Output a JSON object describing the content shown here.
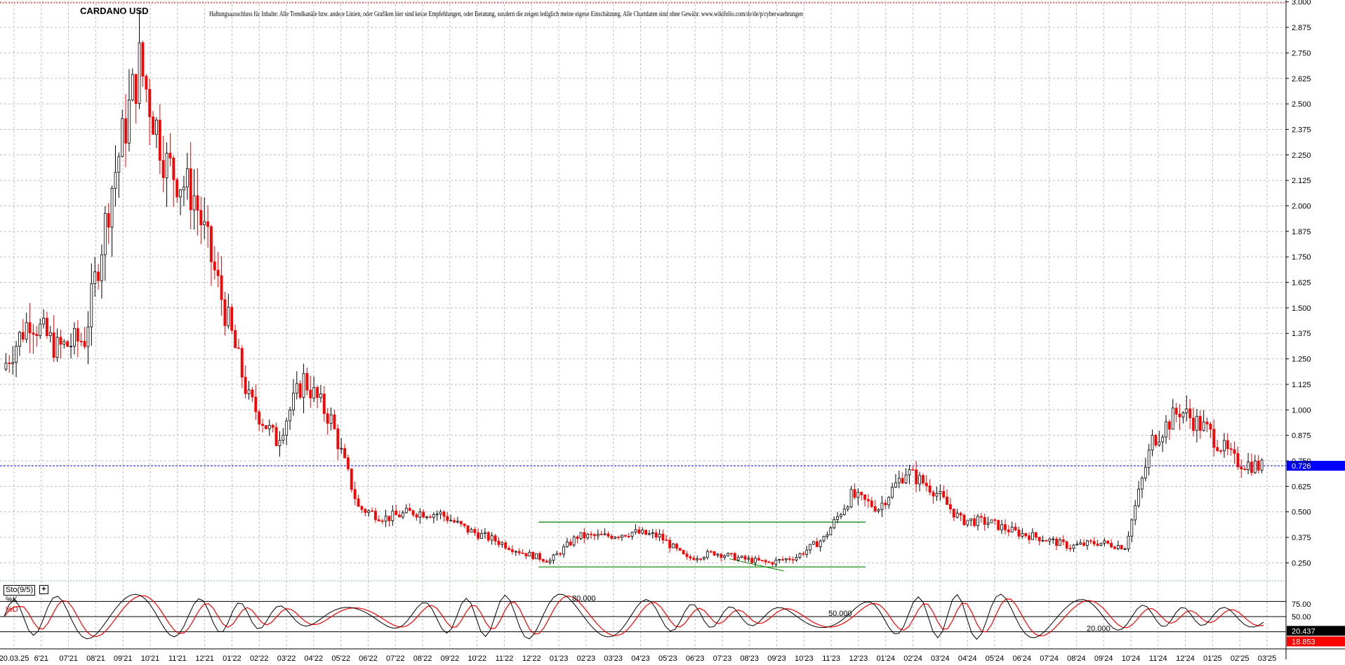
{
  "header": {
    "title": "CARDANO USD",
    "disclaimer": "Haftungsausschluss für Inhalte: Alle Trendkanäle bzw. andere Linien, oder Grafiken hier sind keine Empfehlungen, oder Beratung, sondern die zeigen lediglich meine eigene Einschätzung. Alle Chartdaten sind ohne Gewähr. www.wikifolio.com/de/de/p/cyberwaehrungen"
  },
  "indicator": {
    "name": "Sto(9/5)",
    "plus": "+",
    "k_label": "%K",
    "d_label": "%D",
    "k_value": "20.437",
    "d_value": "18.853",
    "level_labels": [
      "80.000",
      "50.000",
      "20.000"
    ],
    "axis_labels": [
      "75.00",
      "50.00"
    ]
  },
  "chart_data": [
    {
      "type": "candlestick",
      "title": "CARDANO USD",
      "y_ticks": [
        "3.000",
        "2.875",
        "2.750",
        "2.625",
        "2.500",
        "2.375",
        "2.250",
        "2.125",
        "2.000",
        "1.875",
        "1.750",
        "1.625",
        "1.500",
        "1.375",
        "1.250",
        "1.125",
        "1.000",
        "0.875",
        "0.750",
        "0.625",
        "0.500",
        "0.375",
        "0.250"
      ],
      "ylim": [
        0.21,
        3.03
      ],
      "current_price": "0.726",
      "current_price_value": 0.726,
      "x_ticks": [
        "20.03.25",
        "6'21",
        "07'21",
        "08'21",
        "09'21",
        "10'21",
        "11'21",
        "12'21",
        "01'22",
        "02'22",
        "03'22",
        "04'22",
        "05'22",
        "06'22",
        "07'22",
        "08'22",
        "09'22",
        "10'22",
        "11'22",
        "12'22",
        "01'23",
        "02'23",
        "03'23",
        "04'23",
        "05'23",
        "06'23",
        "07'23",
        "08'23",
        "09'23",
        "10'23",
        "11'23",
        "12'23",
        "01'24",
        "02'24",
        "03'24",
        "04'24",
        "05'24",
        "06'24",
        "07'24",
        "08'24",
        "09'24",
        "10'24",
        "11'24",
        "12'24",
        "01'25",
        "02'25",
        "03'25"
      ],
      "colors": {
        "up": "#000000",
        "down": "#ff0000",
        "trendline": "#008000",
        "current": "#0000ff"
      },
      "grid": true,
      "approx_monthly_close": [
        1.2,
        1.45,
        1.3,
        1.35,
        2.1,
        2.7,
        2.2,
        2.05,
        1.55,
        1.05,
        0.85,
        1.15,
        0.95,
        0.52,
        0.47,
        0.5,
        0.49,
        0.41,
        0.36,
        0.3,
        0.26,
        0.38,
        0.38,
        0.4,
        0.38,
        0.27,
        0.3,
        0.27,
        0.25,
        0.28,
        0.37,
        0.58,
        0.52,
        0.7,
        0.61,
        0.46,
        0.45,
        0.4,
        0.37,
        0.33,
        0.35,
        0.33,
        0.85,
        1.0,
        0.9,
        0.75,
        0.72
      ]
    },
    {
      "type": "line",
      "title": "Sto(9/5)",
      "series": [
        {
          "name": "%K",
          "last": 20.437
        },
        {
          "name": "%D",
          "last": 18.853
        }
      ],
      "levels": [
        80,
        50,
        20
      ],
      "ylim": [
        0,
        100
      ],
      "colors": {
        "%K": "#000000",
        "%D": "#ff0000"
      }
    }
  ]
}
